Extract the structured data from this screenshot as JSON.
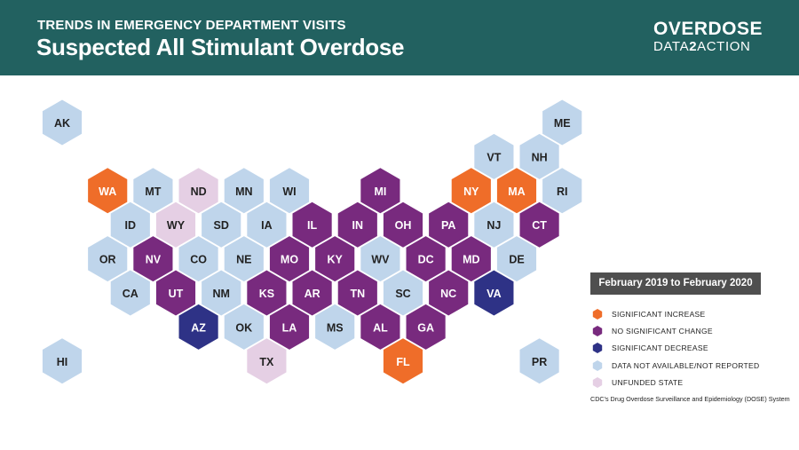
{
  "header": {
    "subtitle": "TRENDS IN EMERGENCY DEPARTMENT VISITS",
    "title": "Suspected All Stimulant Overdose",
    "logo_line1": "OVERDOSE",
    "logo_line2_a": "DATA",
    "logo_line2_b": "2",
    "logo_line2_c": "ACTION"
  },
  "categories": {
    "increase": {
      "label": "SIGNIFICANT INCREASE",
      "color": "#ef6d29",
      "text_color": "#ffffff"
    },
    "nochange": {
      "label": "NO SIGNIFICANT CHANGE",
      "color": "#782a7e",
      "text_color": "#ffffff"
    },
    "decrease": {
      "label": "SIGNIFICANT DECREASE",
      "color": "#2e3286",
      "text_color": "#ffffff"
    },
    "na": {
      "label": "DATA NOT AVAILABLE/NOT REPORTED",
      "color": "#bfd5eb",
      "text_color": "#222222"
    },
    "unfunded": {
      "label": "UNFUNDED STATE",
      "color": "#e5cfe4",
      "text_color": "#222222"
    }
  },
  "legend": {
    "title": "February 2019 to February 2020",
    "order": [
      "increase",
      "nochange",
      "decrease",
      "na",
      "unfunded"
    ]
  },
  "source": "CDC's Drug Overdose Surveillance and Epidemiology (DOSE) System",
  "states": [
    {
      "abbr": "AK",
      "row": 0,
      "col": 0,
      "status": "na"
    },
    {
      "abbr": "ME",
      "row": 0,
      "col": 11,
      "status": "na"
    },
    {
      "abbr": "VT",
      "row": 1,
      "col": 9.5,
      "status": "na"
    },
    {
      "abbr": "NH",
      "row": 1,
      "col": 10.5,
      "status": "na"
    },
    {
      "abbr": "WA",
      "row": 2,
      "col": 1,
      "status": "increase"
    },
    {
      "abbr": "MT",
      "row": 2,
      "col": 2,
      "status": "na"
    },
    {
      "abbr": "ND",
      "row": 2,
      "col": 3,
      "status": "unfunded"
    },
    {
      "abbr": "MN",
      "row": 2,
      "col": 4,
      "status": "na"
    },
    {
      "abbr": "WI",
      "row": 2,
      "col": 5,
      "status": "na"
    },
    {
      "abbr": "MI",
      "row": 2,
      "col": 7,
      "status": "nochange"
    },
    {
      "abbr": "NY",
      "row": 2,
      "col": 9,
      "status": "increase"
    },
    {
      "abbr": "MA",
      "row": 2,
      "col": 10,
      "status": "increase"
    },
    {
      "abbr": "RI",
      "row": 2,
      "col": 11,
      "status": "na"
    },
    {
      "abbr": "ID",
      "row": 3,
      "col": 1.5,
      "status": "na"
    },
    {
      "abbr": "WY",
      "row": 3,
      "col": 2.5,
      "status": "unfunded"
    },
    {
      "abbr": "SD",
      "row": 3,
      "col": 3.5,
      "status": "na"
    },
    {
      "abbr": "IA",
      "row": 3,
      "col": 4.5,
      "status": "na"
    },
    {
      "abbr": "IL",
      "row": 3,
      "col": 5.5,
      "status": "nochange"
    },
    {
      "abbr": "IN",
      "row": 3,
      "col": 6.5,
      "status": "nochange"
    },
    {
      "abbr": "OH",
      "row": 3,
      "col": 7.5,
      "status": "nochange"
    },
    {
      "abbr": "PA",
      "row": 3,
      "col": 8.5,
      "status": "nochange"
    },
    {
      "abbr": "NJ",
      "row": 3,
      "col": 9.5,
      "status": "na"
    },
    {
      "abbr": "CT",
      "row": 3,
      "col": 10.5,
      "status": "nochange"
    },
    {
      "abbr": "OR",
      "row": 4,
      "col": 1,
      "status": "na"
    },
    {
      "abbr": "NV",
      "row": 4,
      "col": 2,
      "status": "nochange"
    },
    {
      "abbr": "CO",
      "row": 4,
      "col": 3,
      "status": "na"
    },
    {
      "abbr": "NE",
      "row": 4,
      "col": 4,
      "status": "na"
    },
    {
      "abbr": "MO",
      "row": 4,
      "col": 5,
      "status": "nochange"
    },
    {
      "abbr": "KY",
      "row": 4,
      "col": 6,
      "status": "nochange"
    },
    {
      "abbr": "WV",
      "row": 4,
      "col": 7,
      "status": "na"
    },
    {
      "abbr": "DC",
      "row": 4,
      "col": 8,
      "status": "nochange"
    },
    {
      "abbr": "MD",
      "row": 4,
      "col": 9,
      "status": "nochange"
    },
    {
      "abbr": "DE",
      "row": 4,
      "col": 10,
      "status": "na"
    },
    {
      "abbr": "CA",
      "row": 5,
      "col": 1.5,
      "status": "na"
    },
    {
      "abbr": "UT",
      "row": 5,
      "col": 2.5,
      "status": "nochange"
    },
    {
      "abbr": "NM",
      "row": 5,
      "col": 3.5,
      "status": "na"
    },
    {
      "abbr": "KS",
      "row": 5,
      "col": 4.5,
      "status": "nochange"
    },
    {
      "abbr": "AR",
      "row": 5,
      "col": 5.5,
      "status": "nochange"
    },
    {
      "abbr": "TN",
      "row": 5,
      "col": 6.5,
      "status": "nochange"
    },
    {
      "abbr": "SC",
      "row": 5,
      "col": 7.5,
      "status": "na"
    },
    {
      "abbr": "NC",
      "row": 5,
      "col": 8.5,
      "status": "nochange"
    },
    {
      "abbr": "VA",
      "row": 5,
      "col": 9.5,
      "status": "decrease"
    },
    {
      "abbr": "AZ",
      "row": 6,
      "col": 3,
      "status": "decrease"
    },
    {
      "abbr": "OK",
      "row": 6,
      "col": 4,
      "status": "na"
    },
    {
      "abbr": "LA",
      "row": 6,
      "col": 5,
      "status": "nochange"
    },
    {
      "abbr": "MS",
      "row": 6,
      "col": 6,
      "status": "na"
    },
    {
      "abbr": "AL",
      "row": 6,
      "col": 7,
      "status": "nochange"
    },
    {
      "abbr": "GA",
      "row": 6,
      "col": 8,
      "status": "nochange"
    },
    {
      "abbr": "HI",
      "row": 7,
      "col": 0,
      "status": "na"
    },
    {
      "abbr": "TX",
      "row": 7,
      "col": 4.5,
      "status": "unfunded"
    },
    {
      "abbr": "FL",
      "row": 7,
      "col": 7.5,
      "status": "increase"
    },
    {
      "abbr": "PR",
      "row": 7,
      "col": 10.5,
      "status": "na"
    }
  ]
}
